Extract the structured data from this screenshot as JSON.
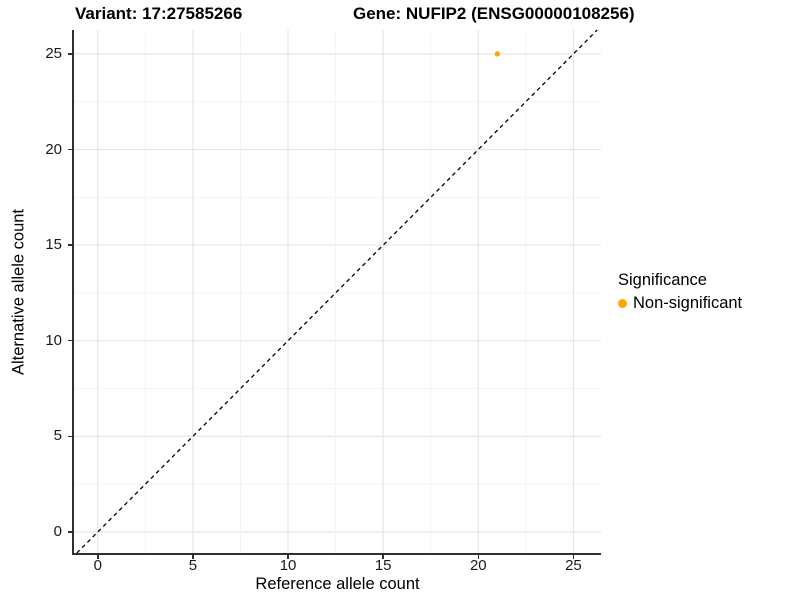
{
  "title": {
    "variant_label": "Variant: 17:27585266",
    "gene_label": "Gene: NUFIP2 (ENSG00000108256)"
  },
  "chart_data": {
    "type": "scatter",
    "xlabel": "Reference allele count",
    "ylabel": "Alternative allele count",
    "xticks": [
      0,
      5,
      10,
      15,
      20,
      25
    ],
    "yticks": [
      0,
      5,
      10,
      15,
      20,
      25
    ],
    "minor_tick_step": 2.5,
    "xlim": [
      -1.25,
      26.45
    ],
    "ylim": [
      -1.1,
      26.25
    ],
    "grid": true,
    "reference_line": {
      "type": "identity y=x",
      "style": "dashed",
      "color": "#000000"
    },
    "series": [
      {
        "name": "Non-significant",
        "color": "#FFA500",
        "points": [
          {
            "x": 21,
            "y": 25
          }
        ]
      }
    ],
    "legend": {
      "title": "Significance",
      "position": "right",
      "items": [
        {
          "label": "Non-significant",
          "color": "#FFA500"
        }
      ]
    },
    "colors": {
      "grid_major": "#E3E3E3",
      "grid_minor": "#F2F2F2",
      "axis_line": "#2F2F2F",
      "background": "#FFFFFF"
    }
  }
}
